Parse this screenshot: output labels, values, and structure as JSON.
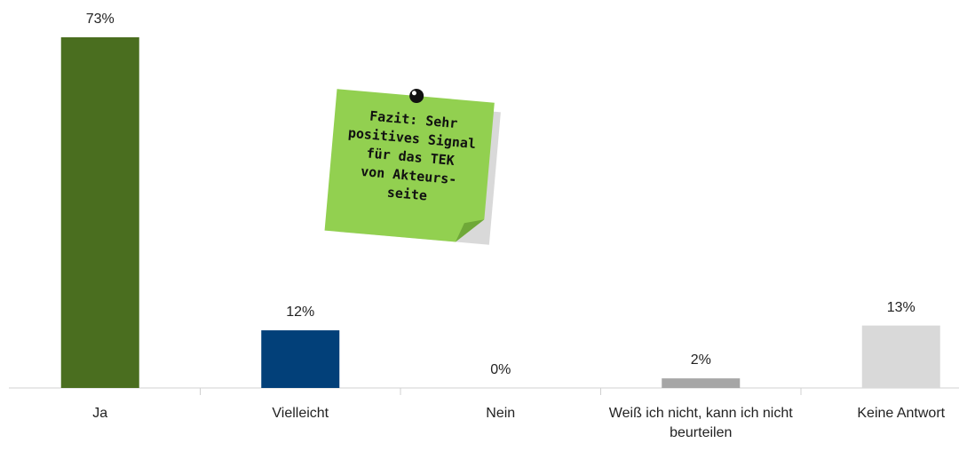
{
  "chart_data": {
    "type": "bar",
    "categories": [
      "Ja",
      "Vielleicht",
      "Nein",
      "Weiß ich  nicht, kann ich nicht beurteilen",
      "Keine Antwort"
    ],
    "values": [
      73,
      12,
      0,
      2,
      13
    ],
    "value_labels": [
      "73%",
      "12%",
      "0%",
      "2%",
      "13%"
    ],
    "colors": [
      "#4a6e1f",
      "#024079",
      "#a6a6a6",
      "#a6a6a6",
      "#d9d9d9"
    ],
    "annotation": {
      "lines": [
        "Fazit: Sehr",
        "positives Signal",
        "für das TEK",
        "von Akteurs-",
        "seite"
      ],
      "color": "#92d050"
    }
  }
}
